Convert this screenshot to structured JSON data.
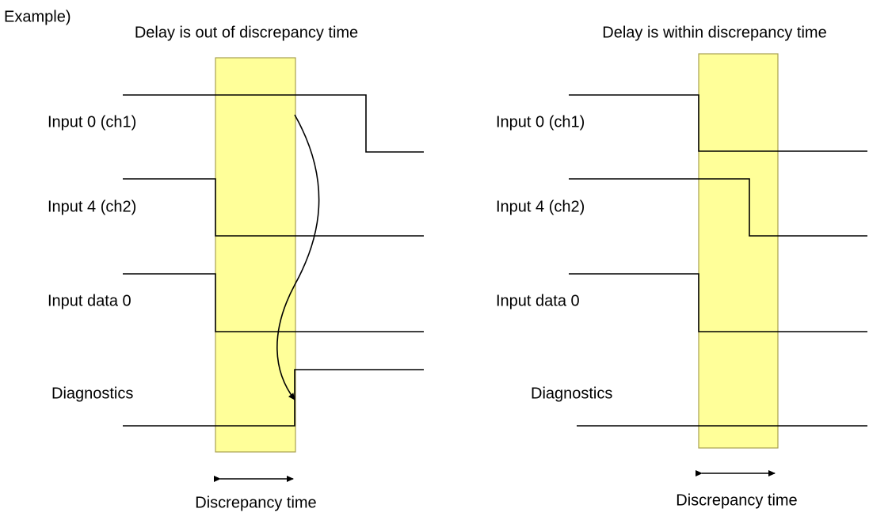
{
  "example_label": "Example)",
  "panels": [
    {
      "title": "Delay is out of discrepancy time",
      "signals": [
        "Input 0 (ch1)",
        "Input 4 (ch2)",
        "Input data 0",
        "Diagnostics"
      ],
      "window_label": "Discrepancy time"
    },
    {
      "title": "Delay is within discrepancy time",
      "signals": [
        "Input 0 (ch1)",
        "Input 4 (ch2)",
        "Input data 0",
        "Diagnostics"
      ],
      "window_label": "Discrepancy time"
    }
  ]
}
